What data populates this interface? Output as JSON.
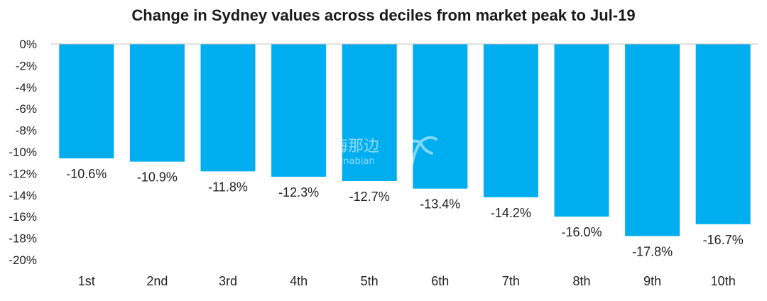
{
  "chart_data": {
    "type": "bar",
    "title": "Change in Sydney values across deciles from market peak to Jul-19",
    "categories": [
      "1st",
      "2nd",
      "3rd",
      "4th",
      "5th",
      "6th",
      "7th",
      "8th",
      "9th",
      "10th"
    ],
    "values": [
      -10.6,
      -10.9,
      -11.8,
      -12.3,
      -12.7,
      -13.4,
      -14.2,
      -16.0,
      -17.8,
      -16.7
    ],
    "data_labels": [
      "-10.6%",
      "-10.9%",
      "-11.8%",
      "-12.3%",
      "-12.7%",
      "-13.4%",
      "-14.2%",
      "-16.0%",
      "-17.8%",
      "-16.7%"
    ],
    "y_ticks": [
      0,
      -2,
      -4,
      -6,
      -8,
      -10,
      -12,
      -14,
      -16,
      -18,
      -20
    ],
    "y_tick_labels": [
      "0%",
      "-2%",
      "-4%",
      "-6%",
      "-8%",
      "-10%",
      "-12%",
      "-14%",
      "-16%",
      "-18%",
      "-20%"
    ],
    "ylim": [
      -20,
      0
    ],
    "xlabel": "",
    "ylabel": "",
    "grid": false,
    "legend": "none",
    "bar_color": "#00AEEF",
    "axis_color": "#bfbfbf"
  },
  "watermark": {
    "text_cn": "海那边",
    "text_en": "Hinabian"
  }
}
